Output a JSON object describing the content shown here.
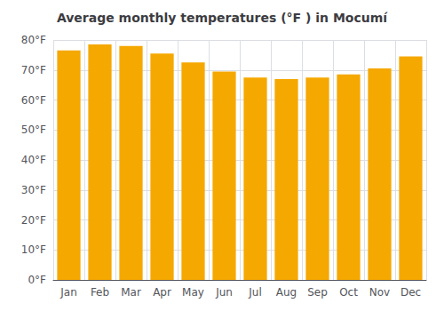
{
  "chart_data": {
    "type": "bar",
    "title": "Average monthly temperatures (°F ) in Mocumí",
    "categories": [
      "Jan",
      "Feb",
      "Mar",
      "Apr",
      "May",
      "Jun",
      "Jul",
      "Aug",
      "Sep",
      "Oct",
      "Nov",
      "Dec"
    ],
    "values": [
      76.5,
      78.5,
      78.0,
      75.5,
      72.5,
      69.5,
      67.5,
      67.0,
      67.5,
      68.5,
      70.5,
      74.5
    ],
    "color": "#F5A800",
    "ylim": [
      0,
      80
    ],
    "yticks": [
      {
        "value": 0,
        "label": "0°F"
      },
      {
        "value": 10,
        "label": "10°F"
      },
      {
        "value": 20,
        "label": "20°F"
      },
      {
        "value": 30,
        "label": "30°F"
      },
      {
        "value": 40,
        "label": "40°F"
      },
      {
        "value": 50,
        "label": "50°F"
      },
      {
        "value": 60,
        "label": "60°F"
      },
      {
        "value": 70,
        "label": "70°F"
      },
      {
        "value": 80,
        "label": "80°F"
      }
    ],
    "grid": true
  }
}
